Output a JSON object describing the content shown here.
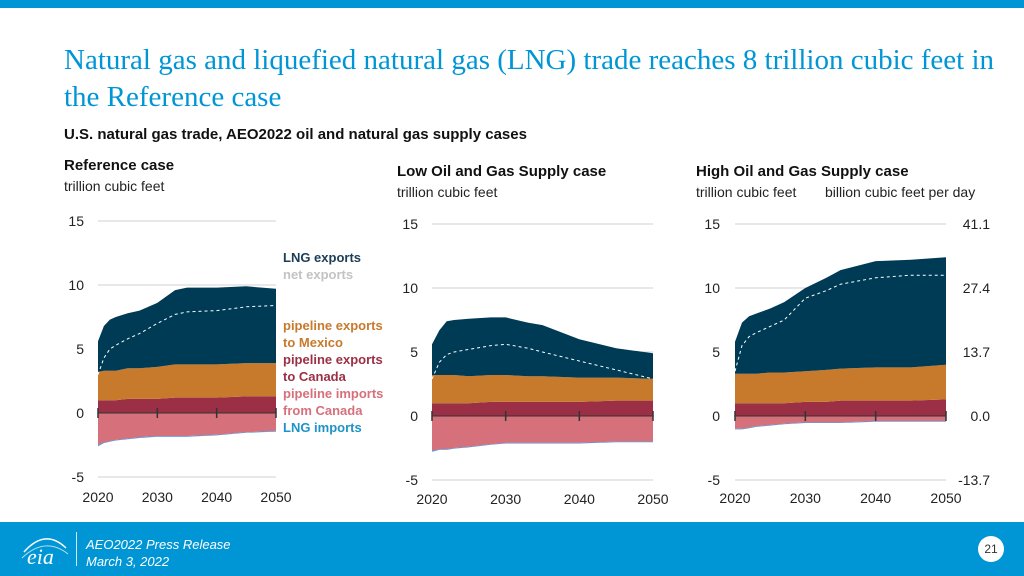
{
  "slide": {
    "title": "Natural gas and liquefied natural gas (LNG) trade reaches 8 trillion cubic feet in the Reference case",
    "subtitle": "U.S. natural gas trade, AEO2022 oil and natural gas supply cases",
    "footer_line1": "AEO2022 Press Release",
    "footer_line2": "March 3, 2022",
    "page_number": "21",
    "logo_text": "eia"
  },
  "legend": {
    "items": [
      {
        "label": "LNG exports",
        "color": "#003b56"
      },
      {
        "label": "net exports",
        "color": "#c3c3c3"
      },
      {
        "label": "pipeline exports to Mexico",
        "color": "#c87a2c"
      },
      {
        "label": "pipeline exports to Canada",
        "color": "#9b2f45"
      },
      {
        "label": "pipeline imports from Canada",
        "color": "#d6707b"
      },
      {
        "label": "LNG imports",
        "color": "#0096d6"
      }
    ],
    "lines": [
      "LNG exports",
      "net exports",
      "pipeline exports",
      "to Mexico",
      "pipeline exports",
      "to Canada",
      "pipeline imports",
      "from Canada",
      "LNG imports"
    ]
  },
  "colors": {
    "lng_exports": "#003b56",
    "mexico": "#c87a2c",
    "canada_exports": "#9b2f45",
    "canada_imports": "#d6707b",
    "lng_imports": "#4a90d9",
    "net_line": "#ffffff",
    "grid": "#d0d0d0"
  },
  "chart_data": [
    {
      "type": "area",
      "title": "Reference case",
      "ylabel": "trillion cubic feet",
      "x": [
        2020,
        2021,
        2022,
        2023,
        2025,
        2027,
        2030,
        2033,
        2035,
        2040,
        2045,
        2050
      ],
      "xticks": [
        "2020",
        "2030",
        "2040",
        "2050"
      ],
      "ylim": [
        -5,
        15
      ],
      "yticks": [
        "-5",
        "0",
        "5",
        "10",
        "15"
      ],
      "series": [
        {
          "name": "LNG exports",
          "values": [
            2.4,
            3.5,
            4.0,
            4.2,
            4.3,
            4.5,
            5.0,
            5.8,
            6.0,
            6.0,
            6.0,
            5.8
          ]
        },
        {
          "name": "pipeline exports to Mexico",
          "values": [
            2.2,
            2.3,
            2.3,
            2.3,
            2.4,
            2.4,
            2.5,
            2.6,
            2.6,
            2.6,
            2.6,
            2.6
          ]
        },
        {
          "name": "pipeline exports to Canada",
          "values": [
            1.0,
            1.0,
            1.0,
            1.0,
            1.1,
            1.1,
            1.1,
            1.2,
            1.2,
            1.2,
            1.3,
            1.3
          ]
        },
        {
          "name": "pipeline imports from Canada",
          "values": [
            -2.5,
            -2.3,
            -2.2,
            -2.1,
            -2.0,
            -1.9,
            -1.8,
            -1.8,
            -1.8,
            -1.7,
            -1.5,
            -1.4
          ]
        },
        {
          "name": "LNG imports",
          "values": [
            -0.1,
            -0.05,
            -0.05,
            -0.05,
            -0.05,
            -0.05,
            -0.05,
            -0.05,
            -0.05,
            -0.05,
            -0.05,
            -0.05
          ]
        },
        {
          "name": "net exports",
          "values": [
            3.0,
            4.3,
            5.0,
            5.3,
            5.8,
            6.2,
            7.0,
            7.7,
            7.9,
            8.0,
            8.3,
            8.4
          ]
        }
      ]
    },
    {
      "type": "area",
      "title": "Low Oil and Gas Supply case",
      "ylabel": "trillion cubic feet",
      "x": [
        2020,
        2021,
        2022,
        2023,
        2025,
        2028,
        2030,
        2033,
        2035,
        2040,
        2045,
        2050
      ],
      "xticks": [
        "2020",
        "2030",
        "2040",
        "2050"
      ],
      "ylim": [
        -5,
        15
      ],
      "yticks": [
        "-5",
        "0",
        "5",
        "10",
        "15"
      ],
      "series": [
        {
          "name": "LNG exports",
          "values": [
            2.4,
            3.5,
            4.2,
            4.3,
            4.5,
            4.5,
            4.5,
            4.2,
            4.0,
            3.0,
            2.3,
            2.0
          ]
        },
        {
          "name": "pipeline exports to Mexico",
          "values": [
            2.2,
            2.2,
            2.2,
            2.2,
            2.1,
            2.1,
            2.1,
            2.0,
            2.0,
            1.9,
            1.8,
            1.7
          ]
        },
        {
          "name": "pipeline exports to Canada",
          "values": [
            1.0,
            1.0,
            1.0,
            1.0,
            1.0,
            1.1,
            1.1,
            1.1,
            1.1,
            1.1,
            1.2,
            1.2
          ]
        },
        {
          "name": "pipeline imports from Canada",
          "values": [
            -2.7,
            -2.6,
            -2.6,
            -2.5,
            -2.4,
            -2.2,
            -2.1,
            -2.1,
            -2.1,
            -2.1,
            -2.0,
            -2.0
          ]
        },
        {
          "name": "LNG imports",
          "values": [
            -0.1,
            -0.05,
            -0.05,
            -0.05,
            -0.05,
            -0.05,
            -0.05,
            -0.05,
            -0.05,
            -0.05,
            -0.05,
            -0.05
          ]
        },
        {
          "name": "net exports",
          "values": [
            2.9,
            4.2,
            4.8,
            5.0,
            5.2,
            5.5,
            5.6,
            5.3,
            5.0,
            4.3,
            3.6,
            2.9
          ]
        }
      ]
    },
    {
      "type": "area",
      "title": "High Oil and Gas Supply case",
      "ylabel": "trillion cubic feet",
      "y2label": "billion cubic feet per day",
      "x": [
        2020,
        2021,
        2022,
        2023,
        2025,
        2027,
        2030,
        2033,
        2035,
        2040,
        2045,
        2050
      ],
      "xticks": [
        "2020",
        "2030",
        "2040",
        "2050"
      ],
      "ylim": [
        -5,
        15
      ],
      "yticks": [
        "-5",
        "0",
        "5",
        "10",
        "15"
      ],
      "y2ticks": [
        "-13.7",
        "0.0",
        "13.7",
        "27.4",
        "41.1"
      ],
      "series": [
        {
          "name": "LNG exports",
          "values": [
            2.5,
            4.0,
            4.5,
            4.7,
            5.0,
            5.5,
            6.5,
            7.2,
            7.7,
            8.3,
            8.4,
            8.4
          ]
        },
        {
          "name": "pipeline exports to Mexico",
          "values": [
            2.3,
            2.3,
            2.3,
            2.3,
            2.4,
            2.4,
            2.4,
            2.5,
            2.5,
            2.6,
            2.6,
            2.7
          ]
        },
        {
          "name": "pipeline exports to Canada",
          "values": [
            1.0,
            1.0,
            1.0,
            1.0,
            1.0,
            1.0,
            1.1,
            1.1,
            1.2,
            1.2,
            1.2,
            1.3
          ]
        },
        {
          "name": "pipeline imports from Canada",
          "values": [
            -1.0,
            -1.0,
            -0.9,
            -0.8,
            -0.7,
            -0.6,
            -0.5,
            -0.5,
            -0.5,
            -0.4,
            -0.4,
            -0.4
          ]
        },
        {
          "name": "LNG imports",
          "values": [
            -0.05,
            -0.05,
            -0.05,
            -0.05,
            -0.05,
            -0.05,
            -0.05,
            -0.05,
            -0.05,
            -0.05,
            -0.05,
            -0.05
          ]
        },
        {
          "name": "net exports",
          "values": [
            3.5,
            5.5,
            6.2,
            6.5,
            7.0,
            7.5,
            9.2,
            9.8,
            10.3,
            10.8,
            11.0,
            11.0
          ]
        }
      ]
    }
  ]
}
